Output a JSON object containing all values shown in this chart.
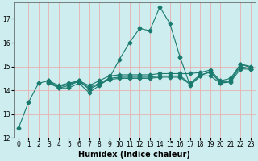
{
  "xlabel": "Humidex (Indice chaleur)",
  "ylabel": "",
  "xlim": [
    -0.5,
    23.5
  ],
  "ylim": [
    12,
    17.7
  ],
  "yticks": [
    12,
    13,
    14,
    15,
    16,
    17
  ],
  "xticks": [
    0,
    1,
    2,
    3,
    4,
    5,
    6,
    7,
    8,
    9,
    10,
    11,
    12,
    13,
    14,
    15,
    16,
    17,
    18,
    19,
    20,
    21,
    22,
    23
  ],
  "background_color": "#cdedef",
  "grid_color": "#e8b0b0",
  "line_color": "#1a7a6e",
  "lines": [
    [
      12.4,
      13.5,
      14.3,
      14.4,
      14.1,
      14.1,
      14.3,
      13.9,
      14.2,
      14.5,
      15.3,
      16.0,
      16.6,
      16.5,
      17.5,
      16.8,
      15.4,
      14.2,
      14.6,
      14.6,
      14.3,
      14.4,
      15.1,
      15.0
    ],
    [
      null,
      null,
      null,
      14.4,
      14.2,
      14.3,
      14.4,
      14.2,
      14.4,
      14.6,
      14.65,
      14.65,
      14.65,
      14.65,
      14.7,
      14.7,
      14.7,
      14.7,
      14.75,
      14.85,
      14.4,
      14.5,
      15.1,
      14.95
    ],
    [
      null,
      null,
      null,
      14.35,
      14.15,
      14.25,
      14.4,
      14.1,
      14.3,
      14.5,
      14.55,
      14.55,
      14.55,
      14.55,
      14.6,
      14.6,
      14.6,
      14.3,
      14.65,
      14.75,
      14.35,
      14.4,
      15.0,
      14.9
    ],
    [
      null,
      null,
      null,
      14.3,
      14.1,
      14.2,
      14.38,
      14.05,
      14.25,
      14.45,
      14.5,
      14.5,
      14.5,
      14.5,
      14.55,
      14.55,
      14.55,
      14.25,
      14.6,
      14.8,
      14.3,
      14.35,
      14.9,
      14.88
    ]
  ],
  "marker": "D",
  "markersize": 2.5,
  "linewidth": 0.8,
  "title_fontsize": 7,
  "label_fontsize": 7,
  "tick_fontsize": 5.5
}
